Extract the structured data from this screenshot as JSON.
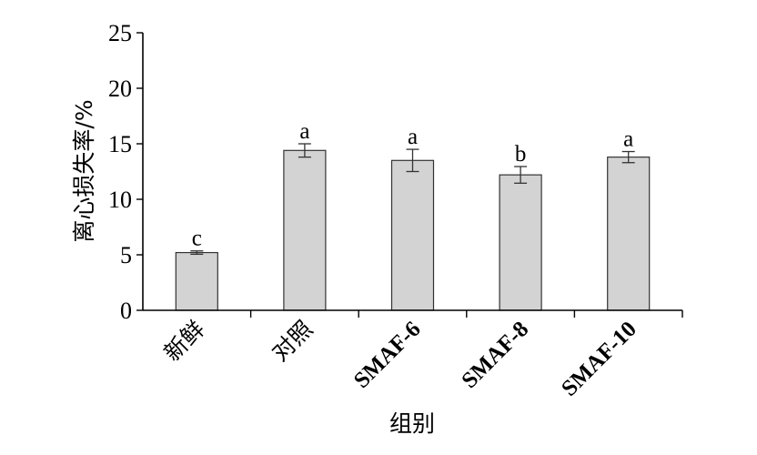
{
  "chart_data": {
    "type": "bar",
    "categories": [
      "新鲜",
      "对照",
      "SMAF-6",
      "SMAF-8",
      "SMAF-10"
    ],
    "values": [
      5.2,
      14.4,
      13.5,
      12.2,
      13.8
    ],
    "errors": [
      0.15,
      0.6,
      1.0,
      0.75,
      0.5
    ],
    "significance": [
      "c",
      "a",
      "a",
      "b",
      "a"
    ],
    "xlabel": "组别",
    "ylabel": "离心损失率/%",
    "ylim": [
      0,
      25
    ],
    "yticks": [
      0,
      5,
      10,
      15,
      20,
      25
    ],
    "grid": false,
    "bar_color": "#d3d3d3"
  }
}
